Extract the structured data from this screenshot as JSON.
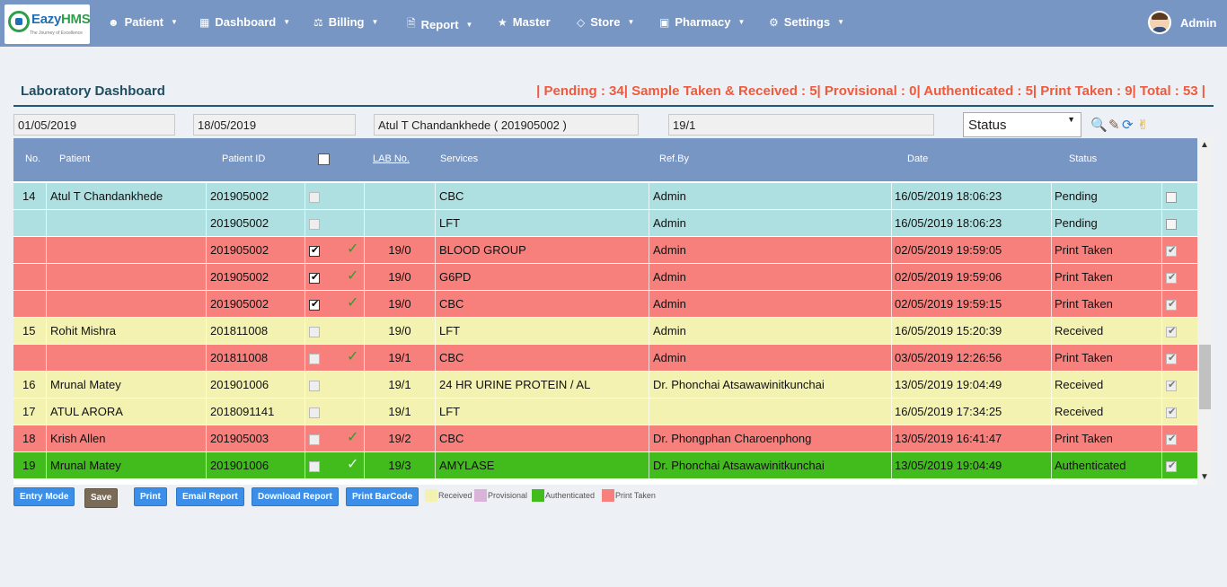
{
  "app": {
    "logo_name_a": "Eazy",
    "logo_name_b": "HMS",
    "logo_tagline": "The Journey of Excellence"
  },
  "nav": {
    "items": [
      {
        "label": "Patient",
        "icon": "user-icon"
      },
      {
        "label": "Dashboard",
        "icon": "grid-icon"
      },
      {
        "label": "Billing",
        "icon": "scale-icon"
      },
      {
        "label": "Report",
        "icon": "file-icon"
      },
      {
        "label": "Master",
        "icon": "star-icon"
      },
      {
        "label": "Store",
        "icon": "tag-icon"
      },
      {
        "label": "Pharmacy",
        "icon": "medkit-icon"
      },
      {
        "label": "Settings",
        "icon": "gear-icon"
      }
    ],
    "user": "Admin"
  },
  "dashboard": {
    "title": "Laboratory Dashboard",
    "counts": "| Pending : 34| Sample Taken & Received : 5| Provisional : 0| Authenticated : 5| Print Taken : 9| Total : 53 |"
  },
  "filters": {
    "from_date": "01/05/2019",
    "to_date": "18/05/2019",
    "patient": "Atul T Chandankhede ( 201905002 )",
    "lab_no": "19/1",
    "status": "Status"
  },
  "table": {
    "headers": {
      "no": "No.",
      "patient": "Patient",
      "patient_id": "Patient ID",
      "lab_no": "LAB No.",
      "services": "Services",
      "ref_by": "Ref.By",
      "date": "Date",
      "status": "Status"
    },
    "rows": [
      {
        "no": "14",
        "patient": "Atul T Chandankhede",
        "pid": "201905002",
        "checked": false,
        "disabled": true,
        "tick": "",
        "lab": "",
        "service": "CBC",
        "ref": "Admin",
        "date": "16/05/2019 18:06:23",
        "status": "Pending",
        "color": "#aee0e2",
        "end_checked": false,
        "end_disabled": false
      },
      {
        "no": "",
        "patient": "",
        "pid": "201905002",
        "checked": false,
        "disabled": true,
        "tick": "",
        "lab": "",
        "service": "LFT",
        "ref": "Admin",
        "date": "16/05/2019 18:06:23",
        "status": "Pending",
        "color": "#aee0e2",
        "end_checked": false,
        "end_disabled": false
      },
      {
        "no": "",
        "patient": "",
        "pid": "201905002",
        "checked": true,
        "disabled": false,
        "tick": "✓",
        "lab": "19/0",
        "service": "BLOOD GROUP",
        "ref": "Admin",
        "date": "02/05/2019 19:59:05",
        "status": "Print Taken",
        "color": "#f77f7c",
        "end_checked": true,
        "end_disabled": true
      },
      {
        "no": "",
        "patient": "",
        "pid": "201905002",
        "checked": true,
        "disabled": false,
        "tick": "✓",
        "lab": "19/0",
        "service": "G6PD",
        "ref": "Admin",
        "date": "02/05/2019 19:59:06",
        "status": "Print Taken",
        "color": "#f77f7c",
        "end_checked": true,
        "end_disabled": true
      },
      {
        "no": "",
        "patient": "",
        "pid": "201905002",
        "checked": true,
        "disabled": false,
        "tick": "✓",
        "lab": "19/0",
        "service": "CBC",
        "ref": "Admin",
        "date": "02/05/2019 19:59:15",
        "status": "Print Taken",
        "color": "#f77f7c",
        "end_checked": true,
        "end_disabled": true
      },
      {
        "no": "15",
        "patient": "Rohit Mishra",
        "pid": "201811008",
        "checked": false,
        "disabled": true,
        "tick": "",
        "lab": "19/0",
        "service": "LFT",
        "ref": "Admin",
        "date": "16/05/2019 15:20:39",
        "status": "Received",
        "color": "#f3f2b1",
        "end_checked": true,
        "end_disabled": true
      },
      {
        "no": "",
        "patient": "",
        "pid": "201811008",
        "checked": false,
        "disabled": true,
        "tick": "✓",
        "lab": "19/1",
        "service": "CBC",
        "ref": "Admin",
        "date": "03/05/2019 12:26:56",
        "status": "Print Taken",
        "color": "#f77f7c",
        "end_checked": true,
        "end_disabled": true
      },
      {
        "no": "16",
        "patient": "Mrunal Matey",
        "pid": "201901006",
        "checked": false,
        "disabled": true,
        "tick": "",
        "lab": "19/1",
        "service": "24 HR URINE PROTEIN / AL",
        "ref": "Dr. Phonchai Atsawawinitkunchai",
        "date": "13/05/2019 19:04:49",
        "status": "Received",
        "color": "#f3f2b1",
        "end_checked": true,
        "end_disabled": true
      },
      {
        "no": "17",
        "patient": "ATUL ARORA",
        "pid": "2018091141",
        "checked": false,
        "disabled": true,
        "tick": "",
        "lab": "19/1",
        "service": "LFT",
        "ref": "",
        "date": "16/05/2019 17:34:25",
        "status": "Received",
        "color": "#f3f2b1",
        "end_checked": true,
        "end_disabled": true
      },
      {
        "no": "18",
        "patient": "Krish Allen",
        "pid": "201905003",
        "checked": false,
        "disabled": true,
        "tick": "✓",
        "lab": "19/2",
        "service": "CBC",
        "ref": "Dr. Phongphan Charoenphong",
        "date": "13/05/2019 16:41:47",
        "status": "Print Taken",
        "color": "#f77f7c",
        "end_checked": true,
        "end_disabled": true
      },
      {
        "no": "19",
        "patient": "Mrunal Matey",
        "pid": "201901006",
        "checked": false,
        "disabled": true,
        "tick": "✓",
        "lab": "19/3",
        "service": "AMYLASE",
        "ref": "Dr. Phonchai Atsawawinitkunchai",
        "date": "13/05/2019 19:04:49",
        "status": "Authenticated",
        "color": "#42bb1d",
        "end_checked": true,
        "end_disabled": true
      }
    ]
  },
  "buttons": {
    "entry_mode": "Entry Mode",
    "save": "Save",
    "print": "Print",
    "email_report": "Email Report",
    "download_report": "Download Report",
    "print_barcode": "Print BarCode"
  },
  "legend": [
    {
      "label": "Received",
      "color": "#f3f2b1"
    },
    {
      "label": "Provisional",
      "color": "#d9b3d9"
    },
    {
      "label": "Authenticated",
      "color": "#42bb1d"
    },
    {
      "label": "Print Taken",
      "color": "#f77f7c"
    }
  ]
}
